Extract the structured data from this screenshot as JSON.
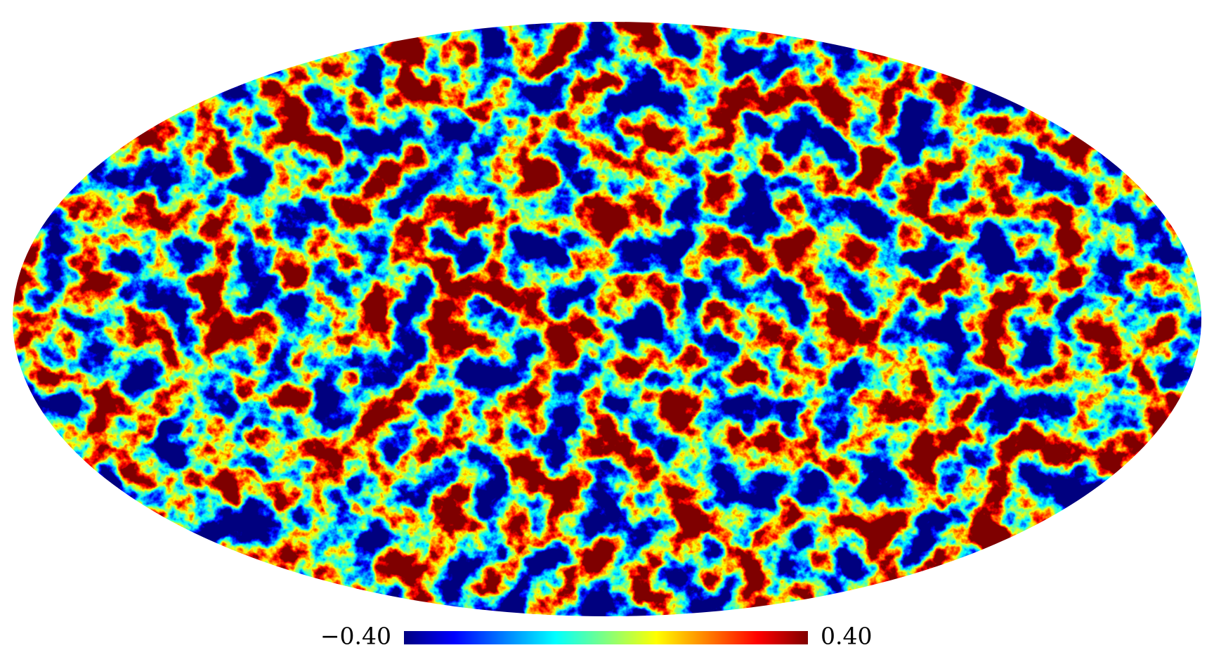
{
  "chart_data": {
    "type": "skymap",
    "projection": "mollweide",
    "colormap": "jet",
    "clim": [
      -0.4,
      0.4
    ],
    "cticks": [
      {
        "value": -0.4,
        "label": "−0.40"
      },
      {
        "value": 0.4,
        "label": "0.40"
      }
    ]
  }
}
